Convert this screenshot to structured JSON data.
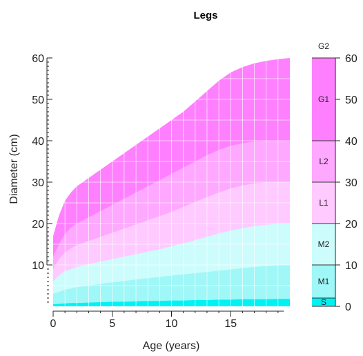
{
  "chart_data": {
    "type": "area",
    "title": "Legs",
    "xlabel": "Age (years)",
    "ylabel": "Diameter (cm)",
    "xlim": [
      0,
      20
    ],
    "ylim": [
      0,
      60
    ],
    "x_ticks": [
      0,
      5,
      10,
      15
    ],
    "y_ticks": [
      10,
      20,
      30,
      40,
      50,
      60
    ],
    "grid": true,
    "x": [
      0,
      0.5,
      1,
      1.5,
      2,
      3,
      4,
      5,
      6,
      7,
      8,
      9,
      10,
      11,
      12,
      13,
      14,
      15,
      16,
      17,
      18,
      19,
      20
    ],
    "series": [
      {
        "name": "S",
        "color": "#00f2f2",
        "values": [
          0.5,
          0.6,
          0.7,
          0.8,
          0.8,
          0.9,
          1.0,
          1.1,
          1.1,
          1.2,
          1.3,
          1.3,
          1.4,
          1.4,
          1.5,
          1.5,
          1.6,
          1.6,
          1.7,
          1.7,
          1.7,
          1.8,
          1.8
        ]
      },
      {
        "name": "M1",
        "color": "#9ff7f7",
        "values": [
          3.0,
          3.5,
          4.0,
          4.3,
          4.6,
          5.0,
          5.4,
          5.8,
          6.1,
          6.5,
          6.8,
          7.1,
          7.4,
          7.7,
          8.0,
          8.3,
          8.6,
          8.9,
          9.2,
          9.5,
          9.7,
          9.9,
          10.0
        ]
      },
      {
        "name": "M2",
        "color": "#ccfcfc",
        "values": [
          6.0,
          7.5,
          8.5,
          9.0,
          9.5,
          10.2,
          10.8,
          11.4,
          12.0,
          12.6,
          13.2,
          13.8,
          14.5,
          15.2,
          16.0,
          16.8,
          17.6,
          18.3,
          18.9,
          19.4,
          19.7,
          19.9,
          20.0
        ]
      },
      {
        "name": "L1",
        "color": "#ffcaff",
        "values": [
          9.0,
          11.5,
          13.0,
          14.0,
          14.8,
          15.8,
          16.8,
          17.8,
          18.8,
          19.8,
          20.8,
          21.8,
          22.8,
          24.0,
          25.2,
          26.4,
          27.5,
          28.5,
          29.2,
          29.7,
          30.0,
          30.0,
          30.0
        ]
      },
      {
        "name": "L2",
        "color": "#ffa8ff",
        "values": [
          12.0,
          15.0,
          17.5,
          19.0,
          20.0,
          21.5,
          23.0,
          24.5,
          26.0,
          27.5,
          29.0,
          30.5,
          32.0,
          33.5,
          35.0,
          36.5,
          37.8,
          38.8,
          39.4,
          39.8,
          40.0,
          40.0,
          40.0
        ]
      },
      {
        "name": "G1",
        "color": "#ff80ff",
        "values": [
          17.0,
          22.0,
          25.5,
          27.5,
          29.0,
          31.0,
          33.0,
          35.0,
          37.0,
          39.0,
          41.0,
          43.0,
          45.0,
          47.0,
          49.5,
          52.0,
          54.5,
          56.5,
          57.8,
          58.7,
          59.3,
          59.7,
          60.0
        ]
      }
    ],
    "zone_legend": [
      {
        "label": "S",
        "from": 0,
        "to": 2,
        "color": "#00f2f2"
      },
      {
        "label": "M1",
        "from": 2,
        "to": 10,
        "color": "#9ff7f7"
      },
      {
        "label": "M2",
        "from": 10,
        "to": 20,
        "color": "#ccfcfc"
      },
      {
        "label": "L1",
        "from": 20,
        "to": 30,
        "color": "#ffcaff"
      },
      {
        "label": "L2",
        "from": 30,
        "to": 40,
        "color": "#ffa8ff"
      },
      {
        "label": "G1",
        "from": 40,
        "to": 60,
        "color": "#ff80ff"
      }
    ],
    "zone_legend_top_label": "G2",
    "zone_legend_ticks": [
      0,
      10,
      20,
      30,
      40,
      50,
      60
    ]
  }
}
